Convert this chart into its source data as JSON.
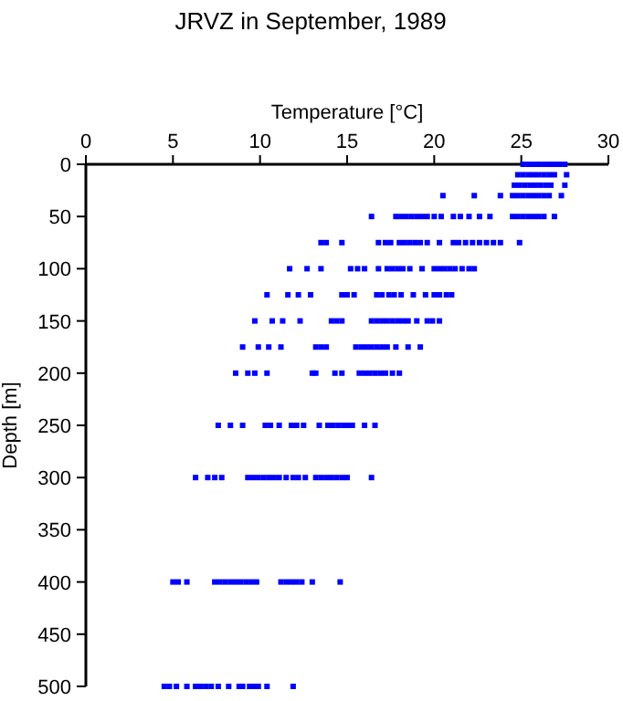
{
  "chart_data": {
    "type": "scatter",
    "title": "JRVZ in September, 1989",
    "xlabel": "Temperature [°C]",
    "ylabel": "Depth [m]",
    "xlim": [
      0,
      30
    ],
    "xticks": [
      0,
      5,
      10,
      15,
      20,
      25,
      30
    ],
    "ylim": [
      500,
      0
    ],
    "yticks": [
      0,
      50,
      100,
      150,
      200,
      250,
      300,
      350,
      400,
      450,
      500
    ],
    "marker": "square",
    "grid": false,
    "series": [
      {
        "color": "#0000ff",
        "x": [
          25.1,
          25.4,
          25.7,
          26.0,
          26.3,
          26.6,
          26.9,
          27.2,
          27.5,
          24.8,
          25.1,
          25.4,
          25.7,
          26.0,
          26.3,
          26.6,
          26.9,
          27.6,
          24.6,
          24.9,
          25.2,
          25.5,
          25.8,
          26.1,
          26.4,
          26.7,
          27.5,
          20.5,
          22.3,
          23.8,
          24.5,
          24.8,
          25.1,
          25.4,
          25.7,
          26.0,
          26.3,
          26.6,
          27.3,
          16.4,
          17.8,
          18.1,
          18.4,
          18.7,
          19.0,
          19.3,
          19.6,
          20.0,
          20.4,
          21.1,
          21.5,
          22.0,
          22.6,
          23.2,
          24.5,
          24.8,
          25.1,
          25.4,
          25.7,
          26.0,
          26.3,
          26.9,
          13.5,
          13.8,
          14.7,
          16.8,
          17.2,
          17.5,
          18.0,
          18.3,
          18.6,
          18.9,
          19.2,
          19.6,
          20.3,
          21.1,
          21.4,
          21.8,
          22.2,
          22.6,
          23.0,
          23.4,
          23.8,
          24.9,
          11.7,
          12.7,
          13.5,
          15.2,
          15.6,
          16.0,
          16.8,
          17.3,
          17.6,
          17.9,
          18.2,
          18.6,
          19.3,
          20.0,
          20.3,
          20.6,
          20.9,
          21.2,
          21.6,
          22.0,
          22.3,
          10.4,
          11.6,
          12.2,
          12.9,
          14.7,
          15.0,
          15.4,
          16.7,
          17.0,
          17.4,
          17.7,
          18.1,
          18.8,
          19.5,
          20.0,
          20.3,
          20.7,
          21.0,
          9.7,
          10.7,
          11.3,
          12.3,
          14.1,
          14.4,
          14.7,
          16.4,
          16.7,
          17.0,
          17.3,
          17.6,
          17.9,
          18.2,
          18.5,
          19.0,
          19.6,
          19.9,
          20.3,
          9.0,
          9.9,
          10.5,
          11.2,
          13.2,
          13.5,
          13.8,
          15.5,
          15.8,
          16.1,
          16.4,
          16.7,
          17.0,
          17.3,
          17.8,
          18.5,
          19.2,
          8.6,
          9.3,
          9.7,
          10.4,
          13.0,
          13.2,
          14.3,
          14.7,
          15.7,
          16.0,
          16.3,
          16.6,
          16.9,
          17.2,
          17.6,
          18.0,
          7.6,
          8.3,
          9.0,
          10.3,
          10.6,
          11.1,
          11.8,
          12.1,
          12.5,
          13.4,
          13.9,
          14.2,
          14.5,
          14.8,
          15.0,
          15.3,
          16.0,
          16.6,
          6.3,
          7.0,
          7.4,
          7.8,
          9.3,
          9.6,
          9.9,
          10.2,
          10.5,
          10.8,
          11.1,
          11.5,
          11.9,
          12.2,
          12.6,
          13.2,
          13.5,
          13.8,
          14.1,
          14.4,
          14.7,
          15.0,
          16.4,
          5.0,
          5.3,
          5.8,
          7.4,
          7.7,
          8.0,
          8.3,
          8.6,
          8.9,
          9.2,
          9.5,
          9.8,
          11.2,
          11.5,
          11.8,
          12.1,
          12.4,
          13.0,
          14.6,
          4.5,
          4.8,
          5.2,
          5.8,
          6.3,
          6.6,
          6.9,
          7.2,
          7.6,
          8.2,
          8.8,
          9.0,
          9.4,
          9.7,
          9.9,
          10.4,
          11.9
        ],
        "values": [
          0,
          0,
          0,
          0,
          0,
          0,
          0,
          0,
          0,
          10,
          10,
          10,
          10,
          10,
          10,
          10,
          10,
          10,
          20,
          20,
          20,
          20,
          20,
          20,
          20,
          20,
          20,
          30,
          30,
          30,
          30,
          30,
          30,
          30,
          30,
          30,
          30,
          30,
          30,
          50,
          50,
          50,
          50,
          50,
          50,
          50,
          50,
          50,
          50,
          50,
          50,
          50,
          50,
          50,
          50,
          50,
          50,
          50,
          50,
          50,
          50,
          50,
          75,
          75,
          75,
          75,
          75,
          75,
          75,
          75,
          75,
          75,
          75,
          75,
          75,
          75,
          75,
          75,
          75,
          75,
          75,
          75,
          75,
          75,
          100,
          100,
          100,
          100,
          100,
          100,
          100,
          100,
          100,
          100,
          100,
          100,
          100,
          100,
          100,
          100,
          100,
          100,
          100,
          100,
          100,
          125,
          125,
          125,
          125,
          125,
          125,
          125,
          125,
          125,
          125,
          125,
          125,
          125,
          125,
          125,
          125,
          125,
          125,
          150,
          150,
          150,
          150,
          150,
          150,
          150,
          150,
          150,
          150,
          150,
          150,
          150,
          150,
          150,
          150,
          150,
          150,
          150,
          175,
          175,
          175,
          175,
          175,
          175,
          175,
          175,
          175,
          175,
          175,
          175,
          175,
          175,
          175,
          175,
          175,
          200,
          200,
          200,
          200,
          200,
          200,
          200,
          200,
          200,
          200,
          200,
          200,
          200,
          200,
          200,
          200,
          250,
          250,
          250,
          250,
          250,
          250,
          250,
          250,
          250,
          250,
          250,
          250,
          250,
          250,
          250,
          250,
          250,
          250,
          300,
          300,
          300,
          300,
          300,
          300,
          300,
          300,
          300,
          300,
          300,
          300,
          300,
          300,
          300,
          300,
          300,
          300,
          300,
          300,
          300,
          300,
          300,
          400,
          400,
          400,
          400,
          400,
          400,
          400,
          400,
          400,
          400,
          400,
          400,
          400,
          400,
          400,
          400,
          400,
          400,
          400,
          500,
          500,
          500,
          500,
          500,
          500,
          500,
          500,
          500,
          500,
          500,
          500,
          500,
          500,
          500,
          500,
          500
        ]
      }
    ]
  }
}
